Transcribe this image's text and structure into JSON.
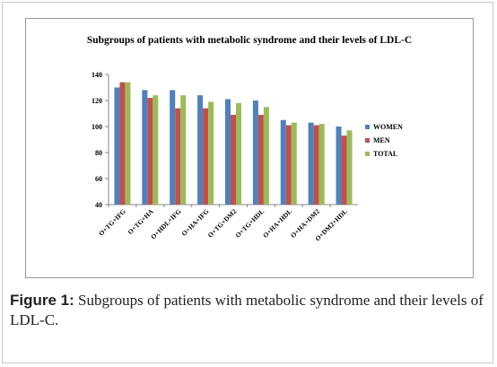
{
  "chart_data": {
    "type": "bar",
    "title": "Subgroups of patients with metabolic syndrome and their levels of LDL-C",
    "categories": [
      "O+TG+IFG",
      "O+TG+HA",
      "O+HDL+IFG",
      "O+HA+IFG",
      "O+TG+DM2",
      "O+TG+HDL",
      "O+HA+HDL",
      "O+HA+DM2",
      "O+DM2+HDL"
    ],
    "series": [
      {
        "name": "WOMEN",
        "color": "#4f81bd",
        "values": [
          130,
          128,
          128,
          124,
          121,
          120,
          105,
          103,
          100
        ]
      },
      {
        "name": "MEN",
        "color": "#c0504d",
        "values": [
          134,
          122,
          114,
          114,
          109,
          109,
          101,
          101,
          93
        ]
      },
      {
        "name": "TOTAL",
        "color": "#9bbb59",
        "values": [
          134,
          124,
          124,
          119,
          118,
          115,
          103,
          102,
          97
        ]
      }
    ],
    "ylim": [
      40,
      140
    ],
    "yticks": [
      40,
      60,
      80,
      100,
      120,
      140
    ],
    "legend_position": "right"
  },
  "caption": {
    "figure_label": "Figure 1:",
    "text": " Subgroups of patients with metabolic syndrome and their levels of LDL-C."
  }
}
